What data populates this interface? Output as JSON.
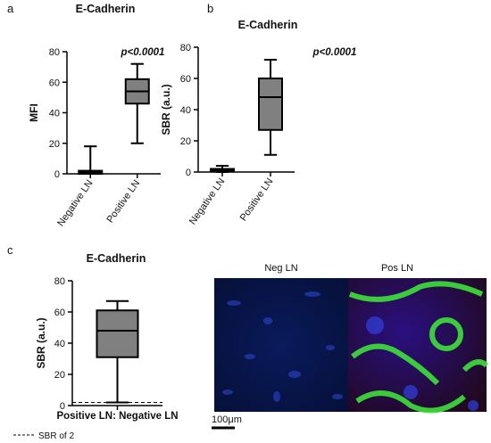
{
  "chart_data": [
    {
      "type": "box",
      "panel": "a",
      "title": "E-Cadherin",
      "ylabel": "MFI",
      "annotation": "p<0.0001",
      "categories": [
        "Negative LN",
        "Positive LN"
      ],
      "color": "#808080",
      "boxes": [
        {
          "min": 0,
          "q1": 0,
          "median": 1,
          "q3": 2,
          "max": 18
        },
        {
          "min": 20,
          "q1": 46,
          "median": 54,
          "q3": 62,
          "max": 72
        }
      ],
      "ylim": [
        0,
        80
      ],
      "yticks": [
        0,
        20,
        40,
        60,
        80
      ]
    },
    {
      "type": "box",
      "panel": "b",
      "title": "E-Cadherin",
      "ylabel": "SBR (a.u.)",
      "annotation": "p<0.0001",
      "categories": [
        "Negative LN",
        "Positive LN"
      ],
      "color": "#808080",
      "boxes": [
        {
          "min": 0,
          "q1": 0.5,
          "median": 1,
          "q3": 2,
          "max": 4
        },
        {
          "min": 11,
          "q1": 27,
          "median": 48,
          "q3": 60,
          "max": 72
        }
      ],
      "ylim": [
        0,
        80
      ],
      "yticks": [
        0,
        20,
        40,
        60,
        80
      ]
    },
    {
      "type": "box",
      "panel": "c",
      "title": "E-Cadherin",
      "ylabel": "SBR (a.u.)",
      "categories": [
        "Positive LN: Negative LN"
      ],
      "color": "#808080",
      "boxes": [
        {
          "min": 2,
          "q1": 31,
          "median": 48,
          "q3": 61,
          "max": 67
        }
      ],
      "reference_line": {
        "value": 2,
        "label": "SBR of 2"
      },
      "ylim": [
        0,
        80
      ],
      "yticks": [
        0,
        20,
        40,
        60,
        80
      ]
    }
  ],
  "micrographs": {
    "labels": [
      "Neg LN",
      "Pos LN"
    ],
    "scale_bar": "100μm"
  }
}
